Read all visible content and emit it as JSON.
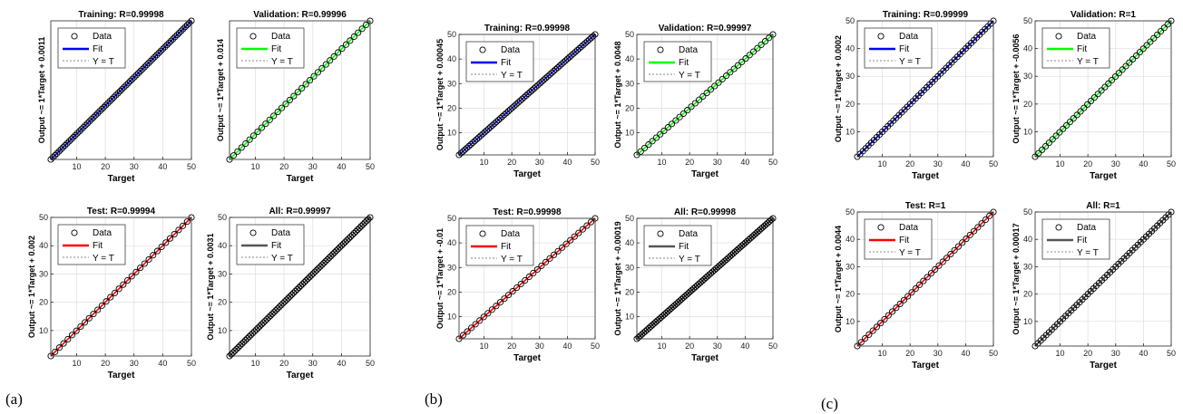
{
  "panels": [
    {
      "label": "(a)"
    },
    {
      "label": "(b)"
    },
    {
      "label": "(c)"
    }
  ],
  "legend": {
    "data": "Data",
    "fit": "Fit",
    "identity": "Y = T"
  },
  "colors": {
    "training": "#0000ff",
    "validation": "#00ff00",
    "test": "#ff0000",
    "all": "#555555",
    "marker": "#000000",
    "identity": "#888888"
  },
  "chart_data": [
    {
      "type": "scatter",
      "group": "(a)",
      "title": "Training: R=0.99998",
      "xlabel": "Target",
      "ylabel": "Output ~= 1*Target + 0.0011",
      "xlim": [
        1,
        50
      ],
      "ylim": [
        1,
        50
      ],
      "xticks": [
        10,
        20,
        30,
        40,
        50
      ],
      "yticks": [],
      "grid": true,
      "legend": "top-left",
      "series": [
        {
          "name": "Data",
          "x_range": [
            1,
            50
          ]
        },
        {
          "name": "Fit",
          "slope": 1,
          "intercept": 0.0011
        },
        {
          "name": "Y = T"
        }
      ],
      "fit_color": "training",
      "markers": 70
    },
    {
      "type": "scatter",
      "group": "(a)",
      "title": "Validation: R=0.99996",
      "xlabel": "Target",
      "ylabel": "Output ~= 1*Target + 0.014",
      "xlim": [
        1,
        50
      ],
      "ylim": [
        1,
        50
      ],
      "xticks": [
        10,
        20,
        30,
        40,
        50
      ],
      "yticks": [],
      "grid": true,
      "legend": "top-left",
      "series": [
        {
          "name": "Data",
          "x_range": [
            1,
            50
          ]
        },
        {
          "name": "Fit",
          "slope": 1,
          "intercept": 0.014
        },
        {
          "name": "Y = T"
        }
      ],
      "fit_color": "validation",
      "markers": 36
    },
    {
      "type": "scatter",
      "group": "(a)",
      "title": "Test: R=0.99994",
      "xlabel": "Target",
      "ylabel": "Output ~= 1*Target + 0.002",
      "xlim": [
        1,
        50
      ],
      "ylim": [
        1,
        50
      ],
      "xticks": [
        10,
        20,
        30,
        40,
        50
      ],
      "yticks": [
        10,
        20,
        30,
        40,
        50
      ],
      "grid": true,
      "legend": "top-left",
      "series": [
        {
          "name": "Data",
          "x_range": [
            1,
            50
          ]
        },
        {
          "name": "Fit",
          "slope": 1,
          "intercept": 0.002
        },
        {
          "name": "Y = T"
        }
      ],
      "fit_color": "test",
      "markers": 34
    },
    {
      "type": "scatter",
      "group": "(a)",
      "title": "All: R=0.99997",
      "xlabel": "Target",
      "ylabel": "Output ~= 1*Target + 0.0031",
      "xlim": [
        1,
        50
      ],
      "ylim": [
        1,
        50
      ],
      "xticks": [
        10,
        20,
        30,
        40,
        50
      ],
      "yticks": [
        10,
        20,
        30,
        40,
        50
      ],
      "grid": true,
      "legend": "top-left",
      "series": [
        {
          "name": "Data",
          "x_range": [
            1,
            50
          ]
        },
        {
          "name": "Fit",
          "slope": 1,
          "intercept": 0.0031
        },
        {
          "name": "Y = T"
        }
      ],
      "fit_color": "all",
      "markers": 80
    },
    {
      "type": "scatter",
      "group": "(b)",
      "title": "Training: R=0.99998",
      "xlabel": "Target",
      "ylabel": "Output ~= 1*Target + 0.00045",
      "xlim": [
        1,
        50
      ],
      "ylim": [
        1,
        50
      ],
      "xticks": [
        10,
        20,
        30,
        40,
        50
      ],
      "yticks": [
        10,
        20,
        30,
        40,
        50
      ],
      "grid": true,
      "legend": "top-left",
      "series": [
        {
          "name": "Data",
          "x_range": [
            1,
            50
          ]
        },
        {
          "name": "Fit",
          "slope": 1,
          "intercept": 0.00045
        },
        {
          "name": "Y = T"
        }
      ],
      "fit_color": "training",
      "markers": 70
    },
    {
      "type": "scatter",
      "group": "(b)",
      "title": "Validation: R=0.99997",
      "xlabel": "Target",
      "ylabel": "Output ~= 1*Target + 0.0048",
      "xlim": [
        1,
        50
      ],
      "ylim": [
        1,
        50
      ],
      "xticks": [
        10,
        20,
        30,
        40,
        50
      ],
      "yticks": [
        10,
        20,
        30,
        40,
        50
      ],
      "grid": true,
      "legend": "top-left",
      "series": [
        {
          "name": "Data",
          "x_range": [
            1,
            50
          ]
        },
        {
          "name": "Fit",
          "slope": 1,
          "intercept": 0.0048
        },
        {
          "name": "Y = T"
        }
      ],
      "fit_color": "validation",
      "markers": 36
    },
    {
      "type": "scatter",
      "group": "(b)",
      "title": "Test: R=0.99998",
      "xlabel": "Target",
      "ylabel": "Output ~= 1*Target + -0.01",
      "xlim": [
        1,
        50
      ],
      "ylim": [
        1,
        50
      ],
      "xticks": [
        10,
        20,
        30,
        40,
        50
      ],
      "yticks": [
        10,
        20,
        30,
        40,
        50
      ],
      "grid": true,
      "legend": "top-left",
      "series": [
        {
          "name": "Data",
          "x_range": [
            1,
            50
          ]
        },
        {
          "name": "Fit",
          "slope": 1,
          "intercept": -0.01
        },
        {
          "name": "Y = T"
        }
      ],
      "fit_color": "test",
      "markers": 34
    },
    {
      "type": "scatter",
      "group": "(b)",
      "title": "All: R=0.99998",
      "xlabel": "Target",
      "ylabel": "Output ~= 1*Target + -0.00019",
      "xlim": [
        1,
        50
      ],
      "ylim": [
        1,
        50
      ],
      "xticks": [
        10,
        20,
        30,
        40,
        50
      ],
      "yticks": [
        10,
        20,
        30,
        40,
        50
      ],
      "grid": true,
      "legend": "top-left",
      "series": [
        {
          "name": "Data",
          "x_range": [
            1,
            50
          ]
        },
        {
          "name": "Fit",
          "slope": 1,
          "intercept": -0.00019
        },
        {
          "name": "Y = T"
        }
      ],
      "fit_color": "all",
      "markers": 80
    },
    {
      "type": "scatter",
      "group": "(c)",
      "title": "Training: R=0.99999",
      "xlabel": "Target",
      "ylabel": "Output ~= 1*Target + 0.0002",
      "xlim": [
        1,
        50
      ],
      "ylim": [
        1,
        50
      ],
      "xticks": [
        10,
        20,
        30,
        40,
        50
      ],
      "yticks": [
        10,
        20,
        30,
        40,
        50
      ],
      "grid": true,
      "legend": "top-left",
      "series": [
        {
          "name": "Data",
          "x_range": [
            1,
            50
          ]
        },
        {
          "name": "Fit",
          "slope": 1,
          "intercept": 0.0002
        },
        {
          "name": "Y = T"
        }
      ],
      "fit_color": "training",
      "markers": 50
    },
    {
      "type": "scatter",
      "group": "(c)",
      "title": "Validation: R=1",
      "xlabel": "Target",
      "ylabel": "Output ~= 1*Target + -0.0056",
      "xlim": [
        1,
        50
      ],
      "ylim": [
        1,
        50
      ],
      "xticks": [
        10,
        20,
        30,
        40,
        50
      ],
      "yticks": [
        10,
        20,
        30,
        40,
        50
      ],
      "grid": true,
      "legend": "top-left",
      "series": [
        {
          "name": "Data",
          "x_range": [
            1,
            50
          ]
        },
        {
          "name": "Fit",
          "slope": 1,
          "intercept": -0.0056
        },
        {
          "name": "Y = T"
        }
      ],
      "fit_color": "validation",
      "markers": 40
    },
    {
      "type": "scatter",
      "group": "(c)",
      "title": "Test: R=1",
      "xlabel": "Target",
      "ylabel": "Output ~= 1*Target + 0.0044",
      "xlim": [
        1,
        50
      ],
      "ylim": [
        1,
        50
      ],
      "xticks": [
        10,
        20,
        30,
        40,
        50
      ],
      "yticks": [
        10,
        20,
        30,
        40,
        50
      ],
      "grid": true,
      "legend": "top-left",
      "series": [
        {
          "name": "Data",
          "x_range": [
            1,
            50
          ]
        },
        {
          "name": "Fit",
          "slope": 1,
          "intercept": 0.0044
        },
        {
          "name": "Y = T"
        }
      ],
      "fit_color": "test",
      "markers": 36
    },
    {
      "type": "scatter",
      "group": "(c)",
      "title": "All: R=1",
      "xlabel": "Target",
      "ylabel": "Output ~= 1*Target + 0.00017",
      "xlim": [
        1,
        50
      ],
      "ylim": [
        1,
        50
      ],
      "xticks": [
        10,
        20,
        30,
        40,
        50
      ],
      "yticks": [
        10,
        20,
        30,
        40,
        50
      ],
      "grid": true,
      "legend": "top-left",
      "series": [
        {
          "name": "Data",
          "x_range": [
            1,
            50
          ]
        },
        {
          "name": "Fit",
          "slope": 1,
          "intercept": 0.00017
        },
        {
          "name": "Y = T"
        }
      ],
      "fit_color": "all",
      "markers": 50
    }
  ]
}
